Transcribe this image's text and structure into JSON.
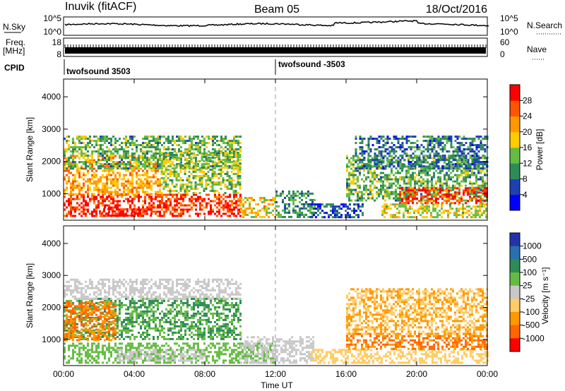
{
  "header": {
    "station": "Inuvik (fitACF)",
    "beam": "Beam 05",
    "date": "18/Oct/2016"
  },
  "top_panels": {
    "nsky_label": "N.Sky",
    "nsky_ticks": [
      "10^5",
      "10^0"
    ],
    "nsearch_label": "N.Search",
    "nsearch_ticks": [
      "10^5",
      "10^0"
    ],
    "freq_label_1": "Freq.",
    "freq_label_2": "[MHz]",
    "freq_ticks": [
      "18",
      "8"
    ],
    "nave_label": "Nave",
    "nave_ticks": [
      "60",
      "0"
    ],
    "cpid_label": "CPID",
    "cpid_segments": [
      {
        "label": "twofsound 3503",
        "start_hour": 0
      },
      {
        "label": "twofsound -3503",
        "start_hour": 12
      }
    ]
  },
  "colors": {
    "power_scale": [
      "#0000ff",
      "#1e40b0",
      "#2e8b57",
      "#66bb44",
      "#ffcc00",
      "#ff9900",
      "#ff5500",
      "#ff0000"
    ],
    "velocity_scale": [
      "#2233aa",
      "#2a6fb0",
      "#2e8b57",
      "#66bb44",
      "#c8c8c8",
      "#ffcc66",
      "#ff9900",
      "#ff6600",
      "#ff0000"
    ],
    "ground_scatter": "#c0c0c0"
  },
  "chart_data": [
    {
      "type": "heatmap",
      "title": "",
      "xlabel": "",
      "ylabel": "Slant Range [km]",
      "x_ticks": [
        "00:00",
        "04:00",
        "08:00",
        "12:00",
        "16:00",
        "20:00",
        "00:00"
      ],
      "x_tick_hours": [
        0,
        4,
        8,
        12,
        16,
        20,
        24
      ],
      "y_ticks": [
        "1000",
        "2000",
        "3000",
        "4000"
      ],
      "y_tick_values": [
        1000,
        2000,
        3000,
        4000
      ],
      "xlim": [
        0,
        24
      ],
      "ylim": [
        180,
        4550
      ],
      "colorbar_label": "Power [dB]",
      "colorbar_ticks": [
        "4",
        "8",
        "12",
        "16",
        "20",
        "24",
        "28"
      ],
      "colorbar_range": [
        0,
        30
      ],
      "dashed_line_hour": 12,
      "regions": [
        {
          "t0": 0,
          "t1": 10,
          "r0": 300,
          "r1": 1000,
          "value": 26
        },
        {
          "t0": 0,
          "t1": 5.5,
          "r0": 1000,
          "r1": 2200,
          "value": 20
        },
        {
          "t0": 2,
          "t1": 5,
          "r0": 300,
          "r1": 550,
          "value": 29
        },
        {
          "t0": 0,
          "t1": 10,
          "r0": 1800,
          "r1": 2800,
          "value": 12
        },
        {
          "t0": 5.5,
          "t1": 10,
          "r0": 1000,
          "r1": 2300,
          "value": 14
        },
        {
          "t0": 10,
          "t1": 12,
          "r0": 300,
          "r1": 900,
          "value": 18
        },
        {
          "t0": 12,
          "t1": 14.2,
          "r0": 300,
          "r1": 1100,
          "value": 10
        },
        {
          "t0": 14,
          "t1": 17,
          "r0": 300,
          "r1": 700,
          "value": 6
        },
        {
          "t0": 16,
          "t1": 24,
          "r0": 800,
          "r1": 2200,
          "value": 12
        },
        {
          "t0": 19,
          "t1": 24,
          "r0": 700,
          "r1": 1200,
          "value": 26
        },
        {
          "t0": 18,
          "t1": 24,
          "r0": 300,
          "r1": 700,
          "value": 16
        },
        {
          "t0": 16.5,
          "t1": 24,
          "r0": 1800,
          "r1": 2800,
          "value": 8
        }
      ]
    },
    {
      "type": "heatmap",
      "title": "",
      "xlabel": "Time UT",
      "ylabel": "Slant Range [km]",
      "x_ticks": [
        "00:00",
        "04:00",
        "08:00",
        "12:00",
        "16:00",
        "20:00",
        "00:00"
      ],
      "x_tick_hours": [
        0,
        4,
        8,
        12,
        16,
        20,
        24
      ],
      "y_ticks": [
        "1000",
        "2000",
        "3000",
        "4000"
      ],
      "y_tick_values": [
        1000,
        2000,
        3000,
        4000
      ],
      "xlim": [
        0,
        24
      ],
      "ylim": [
        180,
        4550
      ],
      "colorbar_label": "Velocity [m s⁻¹]",
      "colorbar_ticks": [
        "1000",
        "500",
        "100",
        "25",
        "-25",
        "-100",
        "-500",
        "-1000"
      ],
      "dashed_line_hour": 12,
      "regions": [
        {
          "t0": 0,
          "t1": 10,
          "r0": 1000,
          "r1": 2300,
          "value": 100
        },
        {
          "t0": 0,
          "t1": 3,
          "r0": 1000,
          "r1": 2200,
          "value": -500
        },
        {
          "t0": 0,
          "t1": 12,
          "r0": 300,
          "r1": 900,
          "value": 50
        },
        {
          "t0": 3,
          "t1": 8,
          "r0": 350,
          "r1": 700,
          "value": 0
        },
        {
          "t0": 0,
          "t1": 10,
          "r0": 2300,
          "r1": 2900,
          "value": 0
        },
        {
          "t0": 10,
          "t1": 14.2,
          "r0": 300,
          "r1": 1100,
          "value": 0
        },
        {
          "t0": 14,
          "t1": 24,
          "r0": 250,
          "r1": 700,
          "value": -60
        },
        {
          "t0": 16,
          "t1": 24,
          "r0": 700,
          "r1": 1200,
          "value": -500
        },
        {
          "t0": 16,
          "t1": 24,
          "r0": 1200,
          "r1": 2600,
          "value": -100
        }
      ]
    }
  ]
}
